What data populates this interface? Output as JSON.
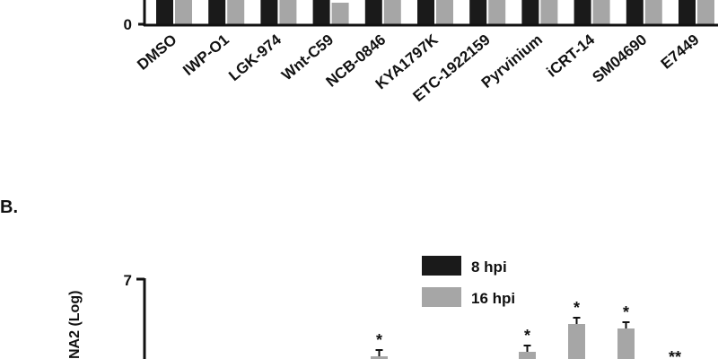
{
  "chart_data": [
    {
      "type": "bar",
      "categories": [
        "DMSO",
        "IWP-O1",
        "LGK-974",
        "Wnt-C59",
        "NCB-0846",
        "KYA1797K",
        "ETC-1922159",
        "Pyrvinium",
        "iCRT-14",
        "SM04690",
        "E7449"
      ],
      "visible_y_tick": "0",
      "series": [
        {
          "color": "#1a1a1a"
        },
        {
          "color": "#a6a6a6"
        }
      ]
    },
    {
      "type": "bar",
      "panel_label": "B.",
      "ylabel_visible": "NA2 (Log)",
      "visible_y_tick": "7",
      "series": [
        {
          "name": "8 hpi",
          "color": "#1a1a1a"
        },
        {
          "name": "16 hpi",
          "color": "#a6a6a6"
        }
      ],
      "annotations": [
        "*",
        "*",
        "*",
        "*",
        "**"
      ]
    }
  ]
}
